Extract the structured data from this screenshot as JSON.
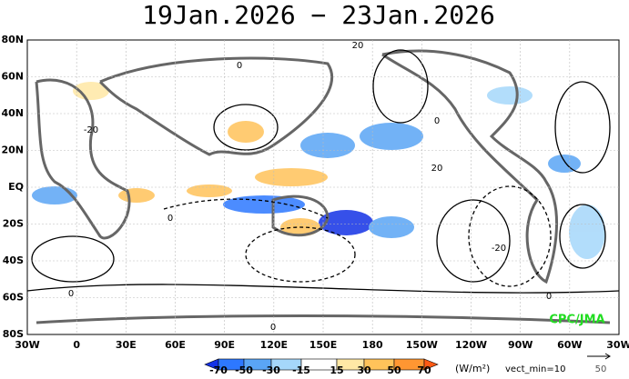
{
  "title": "19Jan.2026 − 23Jan.2026",
  "map": {
    "lat_labels": [
      "80N",
      "60N",
      "40N",
      "20N",
      "EQ",
      "20S",
      "40S",
      "60S",
      "80S"
    ],
    "lon_labels": [
      "30W",
      "0",
      "30E",
      "60E",
      "90E",
      "120E",
      "150E",
      "180",
      "150W",
      "120W",
      "90W",
      "60W",
      "30W"
    ],
    "contour_labels": [
      "20",
      "0",
      "0",
      "-20",
      "20",
      "0",
      "-20",
      "0",
      "0",
      "0"
    ]
  },
  "colorbar": {
    "levels": [
      -70,
      -50,
      -30,
      -15,
      15,
      30,
      50,
      70
    ],
    "colors": [
      "#1432e6",
      "#2d78ff",
      "#5aa5f5",
      "#a5d7fa",
      "#ffffff",
      "#ffe8a5",
      "#ffc35a",
      "#ff9632",
      "#ff5a14"
    ],
    "unit": "(W/m²)",
    "note": "vect_min=10"
  },
  "reference_vector": "50",
  "credit": "CPC/JMA"
}
